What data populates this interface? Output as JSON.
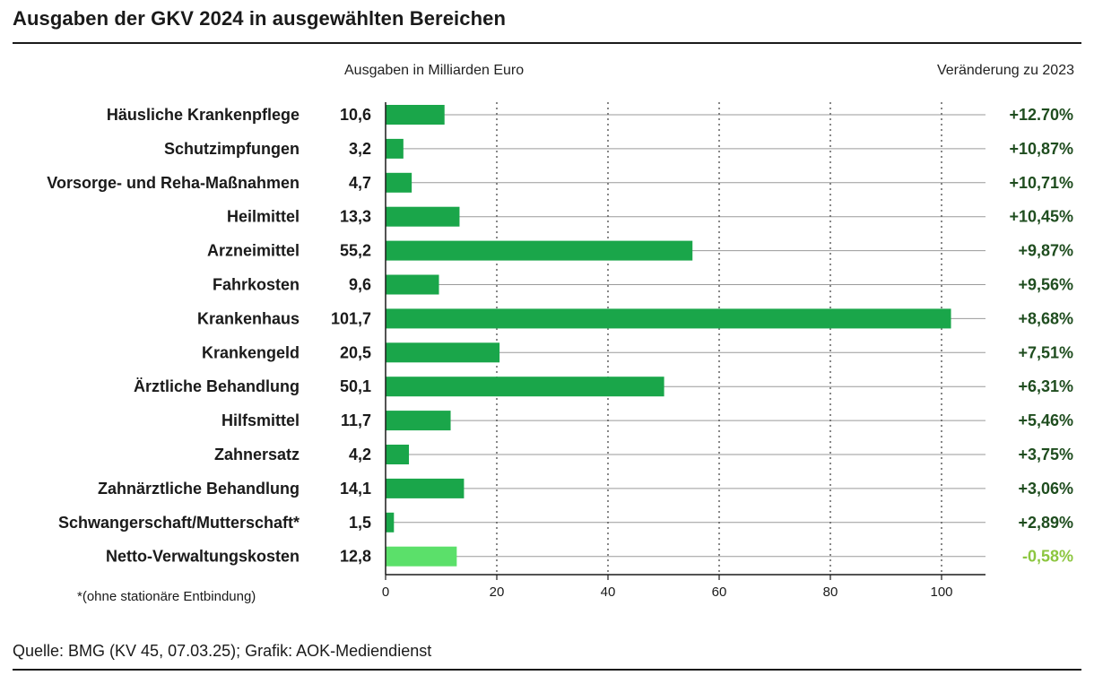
{
  "title": "Ausgaben der GKV 2024 in ausgewählten Bereichen",
  "column_header_left": "Ausgaben in Milliarden Euro",
  "column_header_right": "Veränderung zu 2023",
  "footnote": "*(ohne stationäre Entbindung)",
  "source": "Quelle: BMG (KV 45, 07.03.25); Grafik: AOK-Mediendienst",
  "colors": {
    "bar": "#1aa64a",
    "bar_highlight": "#5be06a",
    "change_positive": "#1f4d1f",
    "change_negative": "#8cc63f"
  },
  "chart_data": {
    "type": "bar",
    "orientation": "horizontal",
    "categories": [
      "Häusliche Krankenpflege",
      "Schutzimpfungen",
      "Vorsorge- und Reha-Maßnahmen",
      "Heilmittel",
      "Arzneimittel",
      "Fahrkosten",
      "Krankenhaus",
      "Krankengeld",
      "Ärztliche Behandlung",
      "Hilfsmittel",
      "Zahnersatz",
      "Zahnärztliche Behandlung",
      "Schwangerschaft/Mutterschaft*",
      "Netto-Verwaltungskosten"
    ],
    "values": [
      10.6,
      3.2,
      4.7,
      13.3,
      55.2,
      9.6,
      101.7,
      20.5,
      50.1,
      11.7,
      4.2,
      14.1,
      1.5,
      12.8
    ],
    "value_labels": [
      "10,6",
      "3,2",
      "4,7",
      "13,3",
      "55,2",
      "9,6",
      "101,7",
      "20,5",
      "50,1",
      "11,7",
      "4,2",
      "14,1",
      "1,5",
      "12,8"
    ],
    "changes": [
      "+12.70%",
      "+10,87%",
      "+10,71%",
      "+10,45%",
      "+9,87%",
      "+9,56%",
      "+8,68%",
      "+7,51%",
      "+6,31%",
      "+5,46%",
      "+3,75%",
      "+3,06%",
      "+2,89%",
      "-0,58%"
    ],
    "highlight_index": 13,
    "xlim": [
      0,
      108
    ],
    "xticks": [
      0,
      20,
      40,
      60,
      80,
      100
    ],
    "grid": "vertical dotted at ticks",
    "legend": "none"
  }
}
